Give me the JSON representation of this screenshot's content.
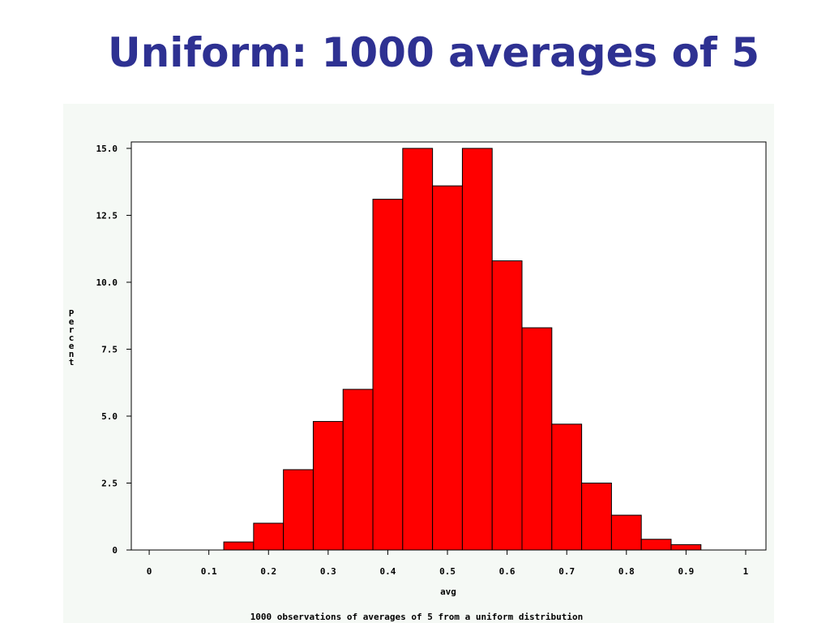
{
  "chart_data": {
    "type": "histogram",
    "title": "Uniform: 1000 averages of 5",
    "xlabel": "avg",
    "ylabel": "Percent",
    "footnote": "1000 observations of averages of 5 from a uniform distribution",
    "bins": [
      0.125,
      0.175,
      0.225,
      0.275,
      0.325,
      0.375,
      0.425,
      0.475,
      0.525,
      0.575,
      0.625,
      0.675,
      0.725,
      0.775,
      0.825,
      0.875,
      0.925
    ],
    "values": [
      0.3,
      1.0,
      3.0,
      4.8,
      6.0,
      13.1,
      15.0,
      13.6,
      15.0,
      10.8,
      8.3,
      4.7,
      2.5,
      1.3,
      0.4,
      0.2
    ],
    "color": "#ff0000",
    "xlim": [
      -0.03,
      1.034
    ],
    "ylim": [
      0,
      15.24
    ],
    "xticks": [
      0,
      0.1,
      0.2,
      0.3,
      0.4,
      0.5,
      0.6,
      0.7,
      0.8,
      0.9,
      1
    ],
    "yticks": [
      0,
      2.5,
      {
        "value": 5,
        "label": "5.0"
      },
      7.5,
      {
        "value": 10,
        "label": "10.0"
      },
      12.5,
      {
        "value": 15,
        "label": "15.0"
      }
    ]
  }
}
